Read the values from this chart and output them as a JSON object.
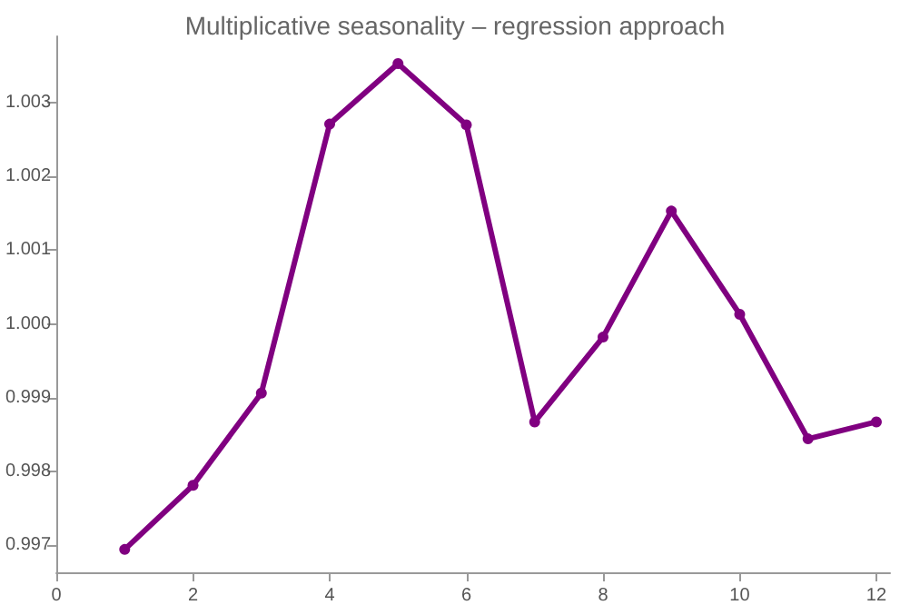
{
  "chart_data": {
    "type": "line",
    "title": "Multiplicative seasonality – regression approach",
    "x": [
      1,
      2,
      3,
      4,
      5,
      6,
      7,
      8,
      9,
      10,
      11,
      12
    ],
    "series": [
      {
        "color": "#800080",
        "values": [
          0.99694,
          0.99781,
          0.99906,
          1.00271,
          1.00353,
          1.0027,
          0.99867,
          0.99982,
          1.00153,
          1.00013,
          0.99844,
          0.99867
        ]
      }
    ],
    "xlim": [
      0,
      12.2
    ],
    "xticks": [
      0,
      2,
      4,
      6,
      8,
      10,
      12
    ],
    "ylim": [
      0.99663,
      1.0039
    ],
    "yticks": [
      0.997,
      0.998,
      0.999,
      {
        "value": 1,
        "label": "1.000"
      },
      1.001,
      1.002,
      1.003
    ],
    "grid": false,
    "marker": "circle",
    "line_style": "solid"
  }
}
